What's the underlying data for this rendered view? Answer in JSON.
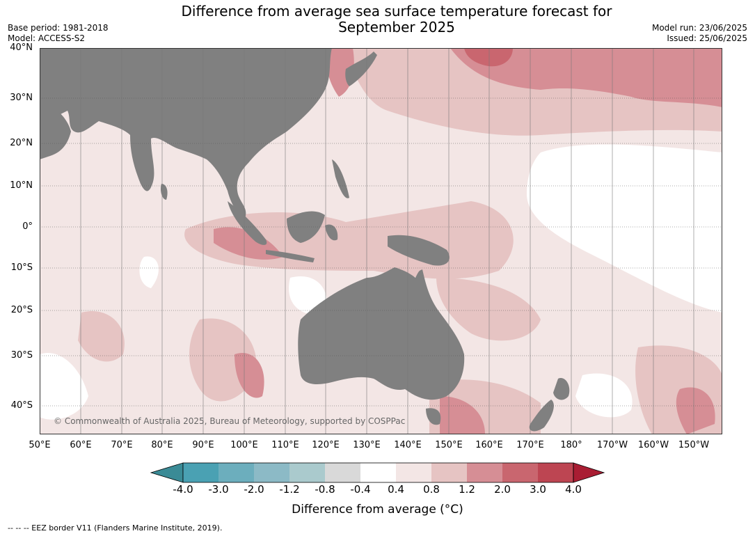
{
  "title_line1": "Difference from average sea surface temperature forecast for",
  "title_line2": "September 2025",
  "meta": {
    "base_period": "Base period: 1981-2018",
    "model": "Model: ACCESS-S2",
    "model_run": "Model run: 23/06/2025",
    "issued": "Issued: 25/06/2025"
  },
  "lat_labels": [
    "40°N",
    "30°N",
    "20°N",
    "10°N",
    "0°",
    "10°S",
    "20°S",
    "30°S",
    "40°S"
  ],
  "lon_labels": [
    "50°E",
    "60°E",
    "70°E",
    "80°E",
    "90°E",
    "100°E",
    "110°E",
    "120°E",
    "130°E",
    "140°E",
    "150°E",
    "160°E",
    "170°E",
    "180°",
    "170°W",
    "160°W",
    "150°W"
  ],
  "copyright": "© Commonwealth of Australia 2025, Bureau of Meteorology, supported by COSPPac",
  "colorbar": {
    "ticks": [
      "-4.0",
      "-3.0",
      "-2.0",
      "-1.2",
      "-0.8",
      "-0.4",
      "0.4",
      "0.8",
      "1.2",
      "2.0",
      "3.0",
      "4.0"
    ],
    "colors": [
      "#3a8b96",
      "#4aa1b3",
      "#6caebd",
      "#8cbac6",
      "#aacacd",
      "#d9d9d9",
      "#ffffff",
      "#f3e6e5",
      "#e6c4c3",
      "#d68e95",
      "#c9666f",
      "#bd4552",
      "#a91d33"
    ],
    "label": "Difference from average (°C)"
  },
  "footnote": "-- -- -- EEZ border V11 (Flanders Marine Institute, 2019).",
  "land_color": "#808080"
}
